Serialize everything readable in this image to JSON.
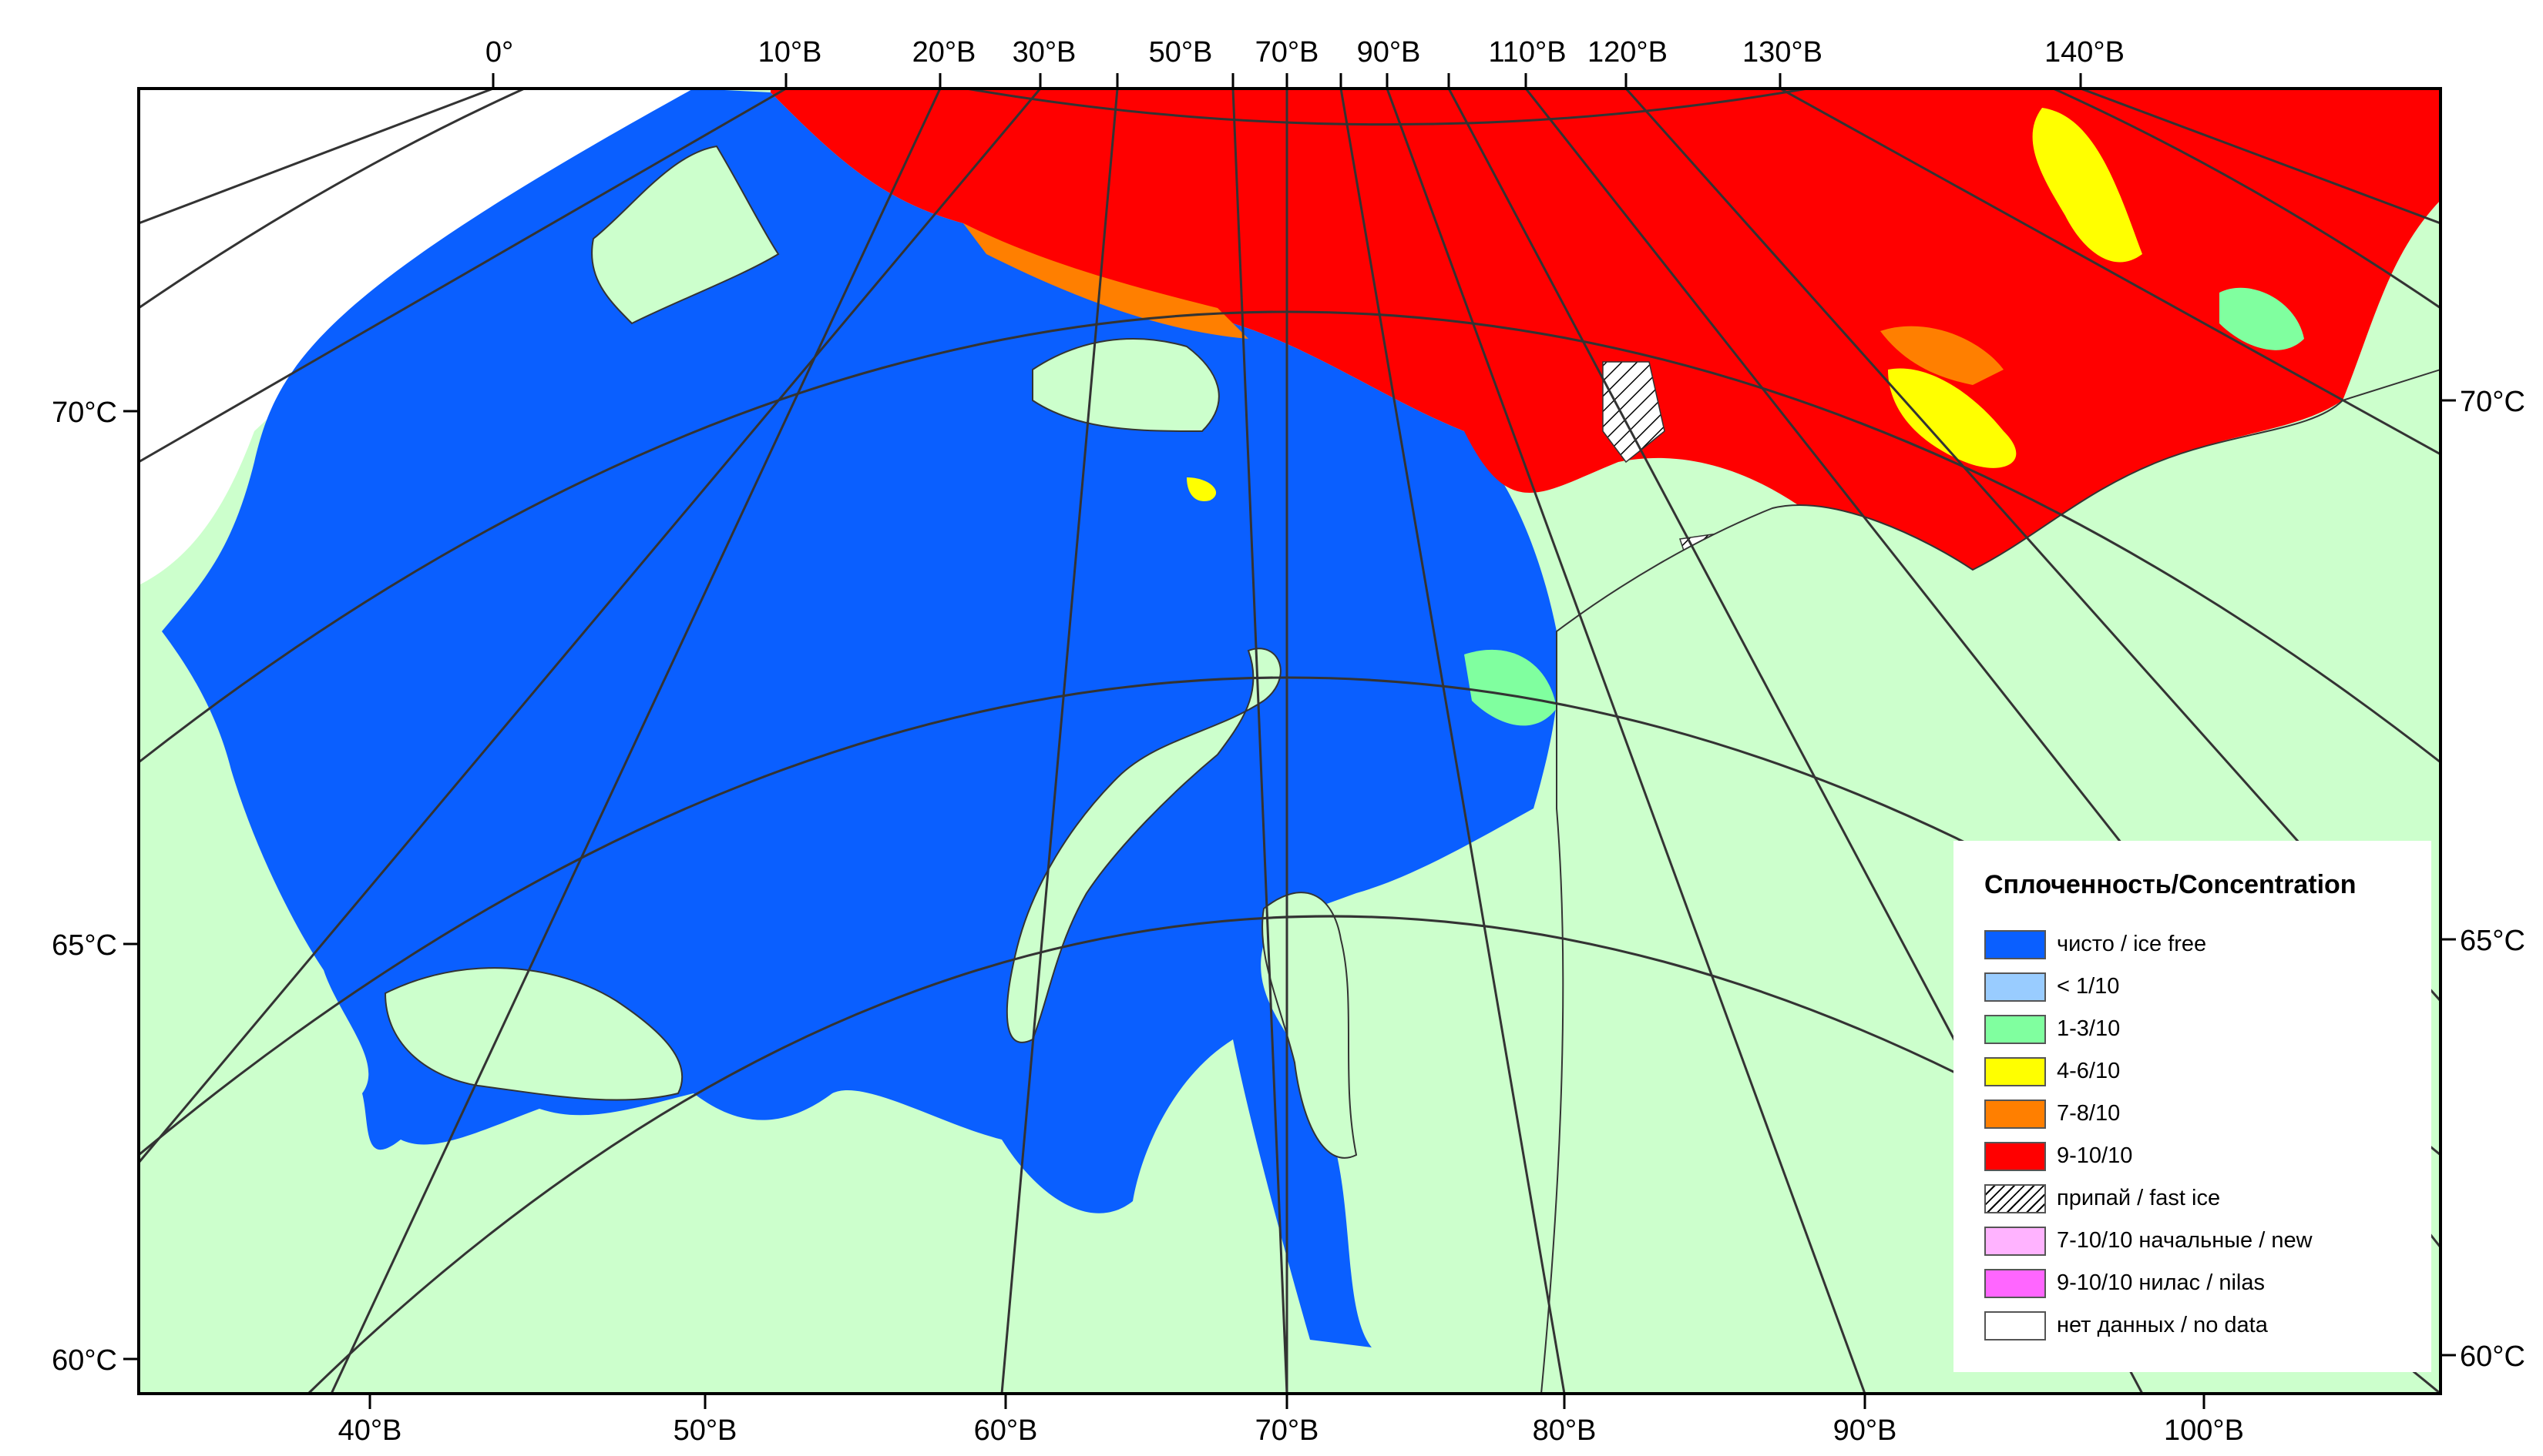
{
  "map": {
    "colors": {
      "land": "#ccffcc",
      "water": "#0a5fff",
      "ice_9_10": "#ff0000",
      "ice_7_8": "#ff7f00",
      "ice_4_6": "#ffff00",
      "ice_1_3": "#80ff9f",
      "no_data": "#ffffff",
      "grid": "#333333"
    },
    "top_longitude_labels": [
      "0°",
      "10°В",
      "20°В",
      "30°В",
      "50°В",
      "70°В",
      "90°В",
      "110°В",
      "120°В",
      "130°В",
      "140°В"
    ],
    "bottom_longitude_labels": [
      "40°В",
      "50°В",
      "60°В",
      "70°В",
      "80°В",
      "90°В",
      "100°В"
    ],
    "left_latitude_labels": [
      "70°С",
      "65°С",
      "60°С"
    ],
    "right_latitude_labels": [
      "70°С",
      "65°С",
      "60°С"
    ]
  },
  "legend": {
    "title": "Сплоченность/Concentration",
    "items": [
      {
        "label": "чисто / ice free",
        "color": "#0a5fff"
      },
      {
        "label": "< 1/10",
        "color": "#99ccff"
      },
      {
        "label": "1-3/10",
        "color": "#80ff9f"
      },
      {
        "label": "4-6/10",
        "color": "#ffff00"
      },
      {
        "label": "7-8/10",
        "color": "#ff7f00"
      },
      {
        "label": "9-10/10",
        "color": "#ff0000"
      },
      {
        "label": "припай / fast ice",
        "color": "hatch"
      },
      {
        "label": "7-10/10 начальные / new",
        "color": "#ffb3ff"
      },
      {
        "label": "9-10/10 нилас / nilas",
        "color": "#ff66ff"
      },
      {
        "label": "нет данных / no data",
        "color": "#ffffff"
      }
    ]
  }
}
